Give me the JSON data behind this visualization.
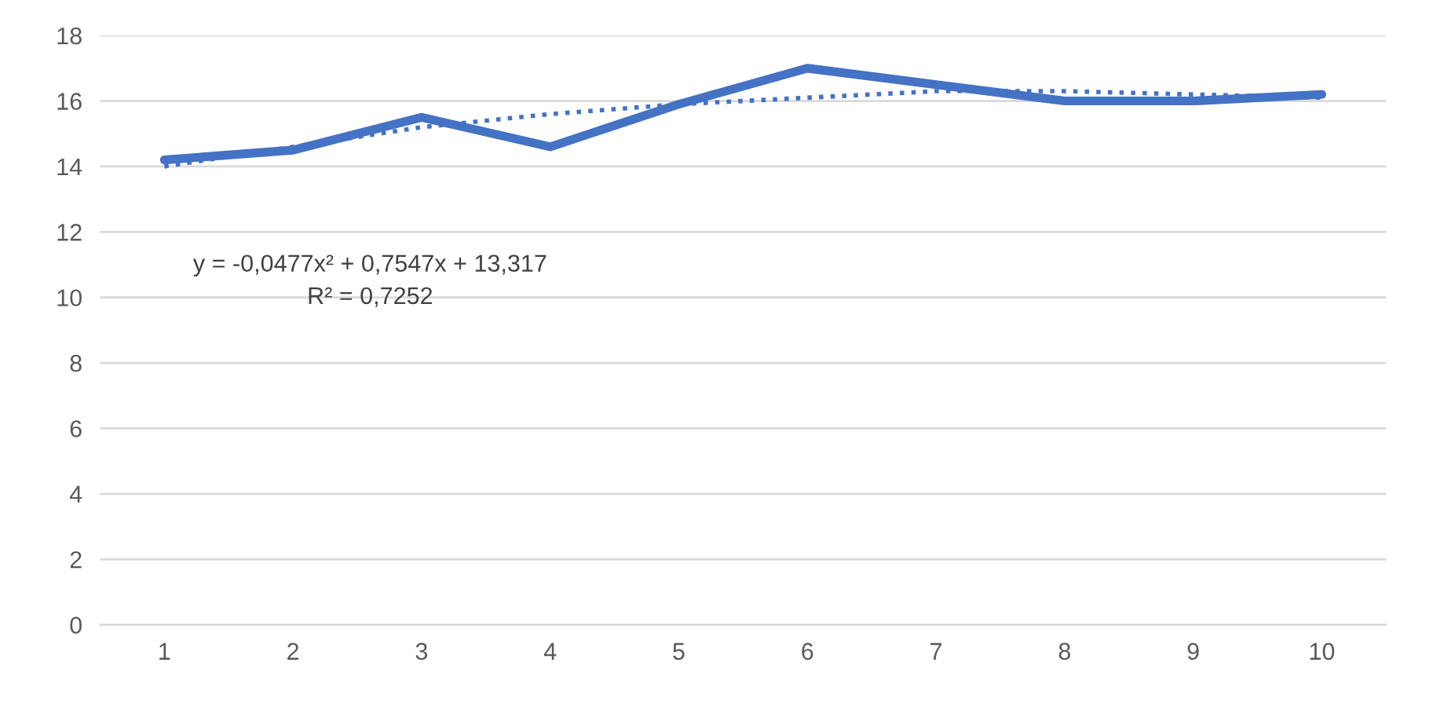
{
  "chart_data": {
    "type": "line",
    "categories": [
      "1",
      "2",
      "3",
      "4",
      "5",
      "6",
      "7",
      "8",
      "9",
      "10"
    ],
    "series": [
      {
        "color": "#4472c4",
        "line_style": "solid",
        "values": [
          14.2,
          14.5,
          15.5,
          14.6,
          15.9,
          17.0,
          16.5,
          16.0,
          16.0,
          16.2
        ]
      },
      {
        "color": "#4472c4",
        "line_style": "dotted",
        "values": [
          14.0,
          14.6,
          15.2,
          15.6,
          15.9,
          16.1,
          16.3,
          16.3,
          16.2,
          16.1
        ]
      }
    ],
    "ylim": [
      0,
      18
    ],
    "yticks": [
      0,
      2,
      4,
      6,
      8,
      10,
      12,
      14,
      16,
      18
    ],
    "grid": "y",
    "legend": false,
    "marker": "none",
    "annotations": [
      "y = -0,0477x² + 0,7547x + 13,317",
      "R² = 0,7252"
    ]
  }
}
